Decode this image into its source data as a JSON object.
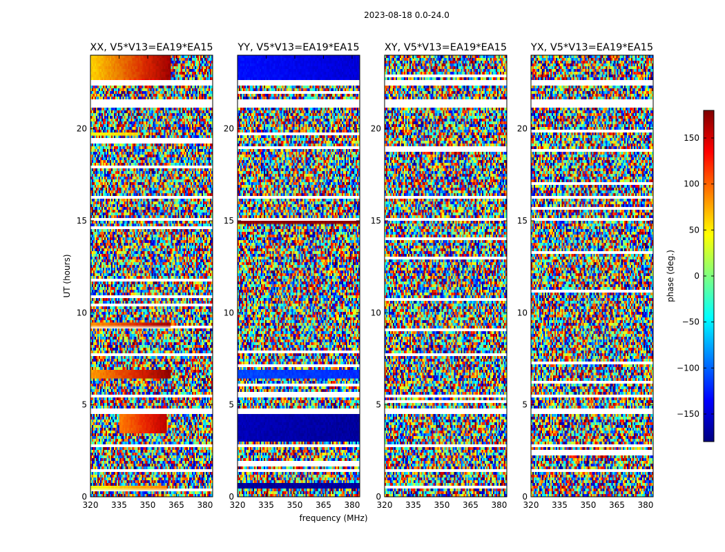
{
  "chart_data": {
    "type": "heatmap",
    "suptitle": "2023-08-18 0.0-24.0",
    "xlabel": "frequency (MHz)",
    "ylabel": "UT (hours)",
    "xlim": [
      320,
      384
    ],
    "ylim": [
      0,
      24
    ],
    "xticks": [
      320,
      335,
      350,
      365,
      380
    ],
    "yticks": [
      0,
      5,
      10,
      15,
      20
    ],
    "panels": [
      {
        "title": "XX, V5*V13=EA19*EA15",
        "polarization": "XX",
        "coherent_features": [
          {
            "ut_start": 22.7,
            "ut_end": 24.0,
            "freq_start": 320,
            "freq_end": 362,
            "phase_start": 60,
            "phase_end": 170
          },
          {
            "ut_start": 6.4,
            "ut_end": 6.9,
            "freq_start": 320,
            "freq_end": 362,
            "phase_start": 80,
            "phase_end": 175
          },
          {
            "ut_start": 9.2,
            "ut_end": 9.5,
            "freq_start": 320,
            "freq_end": 362,
            "phase_start": 80,
            "phase_end": 170
          },
          {
            "ut_start": 3.5,
            "ut_end": 4.5,
            "freq_start": 335,
            "freq_end": 360,
            "phase_start": 90,
            "phase_end": 160
          },
          {
            "ut_start": 0.35,
            "ut_end": 0.6,
            "freq_start": 320,
            "freq_end": 360,
            "phase_start": 40,
            "phase_end": 90
          },
          {
            "ut_start": 19.6,
            "ut_end": 19.8,
            "freq_start": 320,
            "freq_end": 345,
            "phase_start": 40,
            "phase_end": 60
          }
        ]
      },
      {
        "title": "YY, V5*V13=EA19*EA15",
        "polarization": "YY",
        "coherent_features": [
          {
            "ut_start": 22.7,
            "ut_end": 24.0,
            "freq_start": 320,
            "freq_end": 384,
            "phase_start": -130,
            "phase_end": -150
          },
          {
            "ut_start": 6.4,
            "ut_end": 6.9,
            "freq_start": 320,
            "freq_end": 384,
            "phase_start": -110,
            "phase_end": -120
          },
          {
            "ut_start": 14.8,
            "ut_end": 15.0,
            "freq_start": 320,
            "freq_end": 384,
            "phase_start": 175,
            "phase_end": 175
          },
          {
            "ut_start": 0.5,
            "ut_end": 0.7,
            "freq_start": 320,
            "freq_end": 384,
            "phase_start": -170,
            "phase_end": -170
          },
          {
            "ut_start": 3.0,
            "ut_end": 4.5,
            "freq_start": 320,
            "freq_end": 384,
            "phase_start": -160,
            "phase_end": -170
          }
        ]
      },
      {
        "title": "XY, V5*V13=EA19*EA15",
        "polarization": "XY",
        "coherent_features": []
      },
      {
        "title": "YX, V5*V13=EA19*EA15",
        "polarization": "YX",
        "coherent_features": []
      }
    ],
    "flagged_ut_ranges": [
      [
        0.85,
        0.9
      ],
      [
        1.3,
        1.45
      ],
      [
        2.75,
        2.9
      ],
      [
        4.55,
        4.8
      ],
      [
        5.4,
        5.6
      ],
      [
        14.95,
        15.1
      ],
      [
        16.2,
        16.3
      ],
      [
        21.2,
        21.55
      ],
      [
        22.4,
        22.6
      ]
    ],
    "colorbar": {
      "label": "phase (deg.)",
      "range": [
        -180,
        180
      ],
      "ticks": [
        150,
        100,
        50,
        0,
        -50,
        -100,
        -150
      ],
      "tick_labels": [
        "150",
        "100",
        "50",
        "0",
        "−50",
        "−100",
        "−150"
      ],
      "colormap": "jet"
    }
  }
}
